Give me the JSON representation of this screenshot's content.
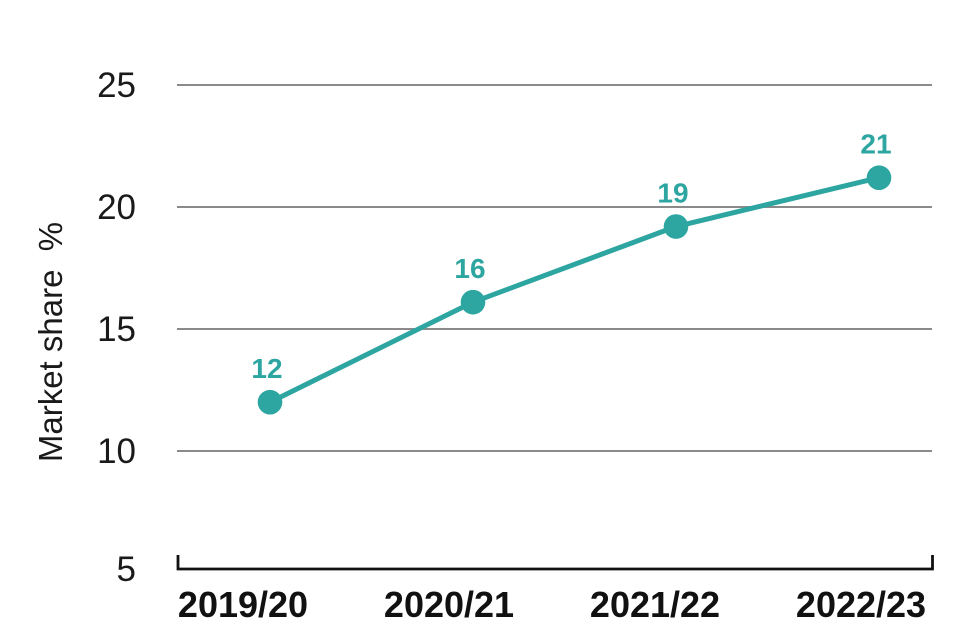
{
  "chart_data": {
    "type": "line",
    "title": "",
    "ylabel": "Market share  %",
    "xlabel": "",
    "categories": [
      "2019/20",
      "2020/21",
      "2021/22",
      "2022/23"
    ],
    "series": [
      {
        "name": "Market share %",
        "color": "#2da5a0",
        "values": [
          12,
          16.1,
          19.2,
          21.2
        ],
        "point_labels": [
          "12",
          "16",
          "19",
          "21"
        ]
      }
    ],
    "y_axis": {
      "min": 5,
      "max": 25,
      "tick_step": 5,
      "tick_values": [
        25,
        20,
        15,
        10,
        5
      ],
      "tick_labels": [
        "25",
        "20",
        "15",
        "10",
        "5"
      ]
    },
    "grid": {
      "horizontal": true,
      "vertical": false
    },
    "legend": "none",
    "colors": {
      "accent": "#2da5a0",
      "gridline": "#8a8a8a",
      "axis": "#111111",
      "text": "#1a1a1a",
      "background": "#ffffff"
    }
  }
}
